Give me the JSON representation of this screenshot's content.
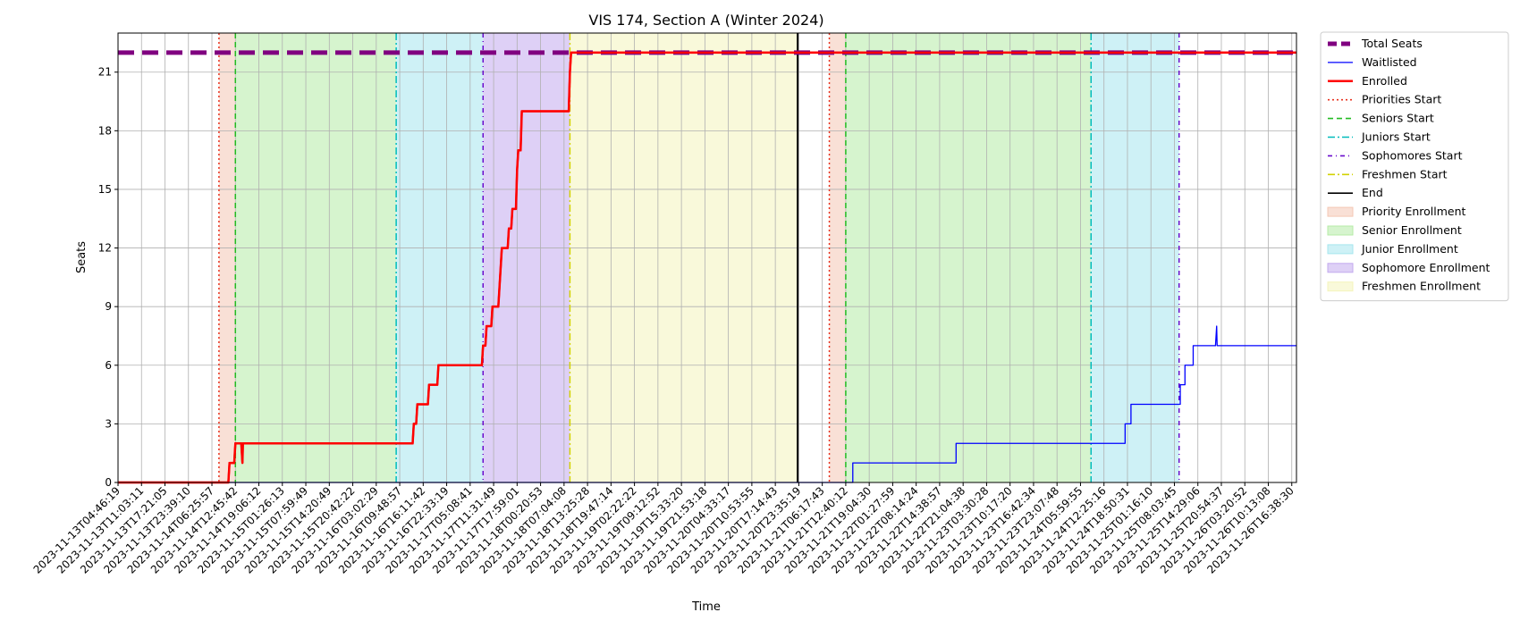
{
  "chart_data": {
    "type": "line",
    "title": "VIS 174, Section A (Winter 2024)",
    "xlabel": "Time",
    "ylabel": "Seats",
    "ylim": [
      0,
      23
    ],
    "yticks": [
      0,
      3,
      6,
      9,
      12,
      15,
      18,
      21
    ],
    "grid": true,
    "legend_position": "outside-right",
    "x_tick_labels": [
      "2023-11-13T04:46:19",
      "2023-11-13T11:03:11",
      "2023-11-13T17:21:05",
      "2023-11-13T23:39:10",
      "2023-11-14T06:25:57",
      "2023-11-14T12:45:42",
      "2023-11-14T19:06:12",
      "2023-11-15T01:26:13",
      "2023-11-15T07:59:49",
      "2023-11-15T14:20:49",
      "2023-11-15T20:42:22",
      "2023-11-16T03:02:29",
      "2023-11-16T09:48:57",
      "2023-11-16T16:11:42",
      "2023-11-16T22:33:19",
      "2023-11-17T05:08:41",
      "2023-11-17T11:31:49",
      "2023-11-17T17:59:01",
      "2023-11-18T00:20:53",
      "2023-11-18T07:04:08",
      "2023-11-18T13:25:28",
      "2023-11-18T19:47:14",
      "2023-11-19T02:22:22",
      "2023-11-19T09:12:52",
      "2023-11-19T15:33:20",
      "2023-11-19T21:53:18",
      "2023-11-20T04:33:17",
      "2023-11-20T10:53:55",
      "2023-11-20T17:14:43",
      "2023-11-20T23:35:19",
      "2023-11-21T06:17:43",
      "2023-11-21T12:40:12",
      "2023-11-21T19:04:30",
      "2023-11-22T01:27:59",
      "2023-11-22T08:14:24",
      "2023-11-22T14:38:57",
      "2023-11-22T21:04:38",
      "2023-11-23T03:30:28",
      "2023-11-23T10:17:20",
      "2023-11-23T16:42:34",
      "2023-11-23T23:07:48",
      "2023-11-24T05:59:55",
      "2023-11-24T12:25:16",
      "2023-11-24T18:50:31",
      "2023-11-25T01:16:10",
      "2023-11-25T08:03:45",
      "2023-11-25T14:29:06",
      "2023-11-25T20:54:37",
      "2023-11-26T03:20:52",
      "2023-11-26T10:13:08",
      "2023-11-26T16:38:30"
    ],
    "x_index_range": [
      0,
      50.2
    ],
    "shaded_regions": [
      {
        "name": "Priority Enrollment",
        "start": 4.3,
        "end": 5.0,
        "color": "#f4c7b4"
      },
      {
        "name": "Senior Enrollment",
        "start": 5.0,
        "end": 11.85,
        "color": "#b5eba6"
      },
      {
        "name": "Junior Enrollment",
        "start": 11.85,
        "end": 15.55,
        "color": "#a5e6ee"
      },
      {
        "name": "Sophomore Enrollment",
        "start": 15.55,
        "end": 19.25,
        "color": "#c3aaee"
      },
      {
        "name": "Freshmen Enrollment",
        "start": 19.25,
        "end": 28.95,
        "color": "#f4f4bb"
      },
      {
        "name": "Priority Enrollment",
        "start": 30.3,
        "end": 31.0,
        "color": "#f4c7b4"
      },
      {
        "name": "Senior Enrollment",
        "start": 31.0,
        "end": 41.45,
        "color": "#b5eba6"
      },
      {
        "name": "Junior Enrollment",
        "start": 41.45,
        "end": 45.2,
        "color": "#a5e6ee"
      }
    ],
    "vlines": [
      {
        "name": "Priorities Start",
        "x": [
          4.3,
          30.3
        ],
        "color": "#e8301e",
        "dash": "2,3"
      },
      {
        "name": "Seniors Start",
        "x": [
          5.0,
          31.0
        ],
        "color": "#22bb22",
        "dash": "6,4"
      },
      {
        "name": "Juniors Start",
        "x": [
          11.85,
          41.45
        ],
        "color": "#00bcbc",
        "dash": "8,3,2,3"
      },
      {
        "name": "Sophomores Start",
        "x": [
          15.55,
          45.2
        ],
        "color": "#6a0ccc",
        "dash": "5,4,1,4"
      },
      {
        "name": "Freshmen Start",
        "x": [
          19.25
        ],
        "color": "#d2d200",
        "dash": "8,3,2,3"
      },
      {
        "name": "End",
        "x": [
          28.95
        ],
        "color": "#000000",
        "dash": ""
      }
    ],
    "series": [
      {
        "name": "Total Seats",
        "color": "#800080",
        "style": "dashed-thick",
        "points": [
          [
            0,
            22
          ],
          [
            50.2,
            22
          ]
        ]
      },
      {
        "name": "Waitlisted",
        "color": "#0000ff",
        "style": "solid-thin",
        "points": [
          [
            0,
            0
          ],
          [
            31.3,
            0
          ],
          [
            31.3,
            1
          ],
          [
            35.7,
            1
          ],
          [
            35.7,
            2
          ],
          [
            42.9,
            2
          ],
          [
            42.9,
            3
          ],
          [
            43.15,
            3
          ],
          [
            43.15,
            4
          ],
          [
            45.25,
            4
          ],
          [
            45.25,
            5
          ],
          [
            45.45,
            5
          ],
          [
            45.45,
            6
          ],
          [
            45.8,
            6
          ],
          [
            45.8,
            7
          ],
          [
            46.75,
            7
          ],
          [
            46.8,
            8
          ],
          [
            46.82,
            7
          ],
          [
            50.2,
            7
          ]
        ]
      },
      {
        "name": "Enrolled",
        "color": "#ff0000",
        "style": "solid-thick",
        "points": [
          [
            0,
            0
          ],
          [
            4.7,
            0
          ],
          [
            4.75,
            1
          ],
          [
            4.95,
            1
          ],
          [
            5.0,
            2
          ],
          [
            5.25,
            2
          ],
          [
            5.3,
            1
          ],
          [
            5.32,
            2
          ],
          [
            12.55,
            2
          ],
          [
            12.6,
            3
          ],
          [
            12.7,
            3
          ],
          [
            12.75,
            4
          ],
          [
            13.2,
            4
          ],
          [
            13.25,
            5
          ],
          [
            13.6,
            5
          ],
          [
            13.65,
            6
          ],
          [
            15.5,
            6
          ],
          [
            15.55,
            7
          ],
          [
            15.65,
            7
          ],
          [
            15.7,
            8
          ],
          [
            15.9,
            8
          ],
          [
            15.95,
            9
          ],
          [
            16.2,
            9
          ],
          [
            16.25,
            10
          ],
          [
            16.3,
            11
          ],
          [
            16.35,
            12
          ],
          [
            16.6,
            12
          ],
          [
            16.65,
            13
          ],
          [
            16.75,
            13
          ],
          [
            16.8,
            14
          ],
          [
            16.95,
            14
          ],
          [
            17.0,
            16
          ],
          [
            17.05,
            17
          ],
          [
            17.15,
            17
          ],
          [
            17.2,
            19
          ],
          [
            19.0,
            19
          ],
          [
            19.2,
            19
          ],
          [
            19.25,
            21
          ],
          [
            19.3,
            22
          ],
          [
            50.2,
            22
          ]
        ]
      }
    ],
    "legend": [
      "Total Seats",
      "Waitlisted",
      "Enrolled",
      "Priorities Start",
      "Seniors Start",
      "Juniors Start",
      "Sophomores Start",
      "Freshmen Start",
      "End",
      "Priority Enrollment",
      "Senior Enrollment",
      "Junior Enrollment",
      "Sophomore Enrollment",
      "Freshmen Enrollment"
    ]
  }
}
